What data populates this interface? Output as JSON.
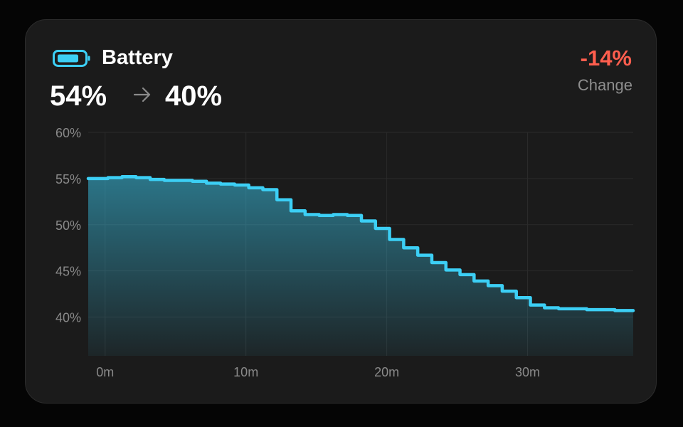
{
  "header": {
    "title": "Battery",
    "start_value": "54%",
    "end_value": "40%",
    "change_value": "-14%",
    "change_label": "Change"
  },
  "icons": {
    "battery": "battery-icon",
    "arrow": "arrow-right-icon"
  },
  "colors": {
    "accent": "#3ccff5",
    "negative": "#ff5e4e",
    "card_background": "#1b1b1b"
  },
  "chart_data": {
    "type": "area",
    "title": "",
    "xlabel": "",
    "ylabel": "",
    "xlim": [
      -1.2,
      37.5
    ],
    "ylim": [
      35.8,
      60
    ],
    "grid": true,
    "x_ticks": [
      0,
      10,
      20,
      30
    ],
    "x_tick_labels": [
      "0m",
      "10m",
      "20m",
      "30m"
    ],
    "y_ticks": [
      60,
      55,
      50,
      45,
      40
    ],
    "y_tick_labels": [
      "60%",
      "55%",
      "50%",
      "45%",
      "40%"
    ],
    "series": [
      {
        "step": true,
        "x": [
          -1.2,
          0.2,
          1.2,
          2.2,
          3.2,
          4.2,
          5.2,
          6.2,
          7.2,
          8.2,
          9.2,
          10.2,
          11.2,
          12.2,
          13.2,
          14.2,
          15.2,
          16.2,
          17.2,
          18.2,
          19.2,
          20.2,
          21.2,
          22.2,
          23.2,
          24.2,
          25.2,
          26.2,
          27.2,
          28.2,
          29.2,
          30.2,
          31.2,
          32.2,
          33.2,
          34.2,
          35.2,
          36.2,
          37.5
        ],
        "y": [
          55.0,
          55.1,
          55.2,
          55.1,
          54.9,
          54.8,
          54.8,
          54.7,
          54.5,
          54.4,
          54.3,
          54.0,
          53.8,
          52.7,
          51.5,
          51.1,
          51.0,
          51.1,
          51.0,
          50.4,
          49.6,
          48.4,
          47.5,
          46.7,
          45.9,
          45.1,
          44.6,
          43.9,
          43.4,
          42.8,
          42.1,
          41.3,
          41.0,
          40.9,
          40.9,
          40.8,
          40.8,
          40.7,
          40.7
        ]
      }
    ]
  }
}
